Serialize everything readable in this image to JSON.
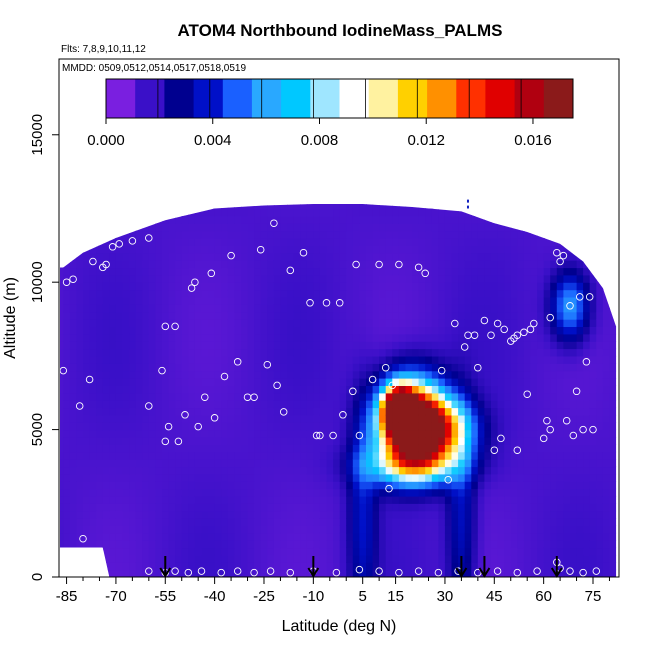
{
  "chart_data": {
    "type": "heatmap",
    "title": "ATOM4 Northbound IodineMass_PALMS",
    "flights_label": "Flts: 7,8,9,10,11,12",
    "dates_label": "MMDD: 0509,0512,0514,0517,0518,0519",
    "xlabel": "Latitude (deg N)",
    "ylabel": "Altitude (m)",
    "xlim": [
      -87,
      83
    ],
    "ylim": [
      0,
      17500
    ],
    "x_ticks": [
      -85,
      -70,
      -55,
      -40,
      -25,
      -10,
      5,
      15,
      30,
      45,
      60,
      75
    ],
    "y_ticks": [
      0,
      5000,
      10000,
      15000
    ],
    "colorbar": {
      "min": 0.0,
      "max": 0.0175,
      "tick_values": [
        0.0,
        0.004,
        0.008,
        0.012,
        0.016
      ],
      "tick_labels": [
        "0.000",
        "0.004",
        "0.008",
        "0.012",
        "0.016"
      ],
      "colors": [
        "#7a1fe0",
        "#3a10c8",
        "#00008f",
        "#0010c8",
        "#1a60ff",
        "#29a8ff",
        "#00c8ff",
        "#9fe6ff",
        "#ffffff",
        "#fff2a0",
        "#ffd000",
        "#ff9000",
        "#ff3000",
        "#e00000",
        "#b00010",
        "#8b1a1a"
      ]
    },
    "field_envelope": [
      [
        -86,
        10500
      ],
      [
        -80,
        11000
      ],
      [
        -70,
        11500
      ],
      [
        -55,
        12100
      ],
      [
        -40,
        12500
      ],
      [
        -25,
        12600
      ],
      [
        -10,
        12650
      ],
      [
        5,
        12650
      ],
      [
        20,
        12550
      ],
      [
        35,
        12400
      ],
      [
        45,
        12000
      ],
      [
        55,
        11700
      ],
      [
        65,
        11300
      ],
      [
        72,
        10700
      ],
      [
        78,
        9800
      ],
      [
        82,
        8500
      ],
      [
        82,
        0
      ],
      [
        -72,
        0
      ],
      [
        -74,
        1000
      ],
      [
        -87,
        1000
      ],
      [
        -87,
        10500
      ]
    ],
    "hotspots": [
      {
        "lat": 20,
        "alt": 5300,
        "value": 0.0165,
        "sx": 7,
        "sy": 1000
      },
      {
        "lat": 16,
        "alt": 5700,
        "value": 0.017,
        "sx": 3,
        "sy": 500
      },
      {
        "lat": 26,
        "alt": 5000,
        "value": 0.011,
        "sx": 8,
        "sy": 700
      },
      {
        "lat": 20,
        "alt": 3800,
        "value": 0.007,
        "sx": 10,
        "sy": 500
      },
      {
        "lat": 5,
        "alt": 2000,
        "value": 0.0025,
        "sx": 3,
        "sy": 2500
      },
      {
        "lat": 35,
        "alt": 2000,
        "value": 0.0025,
        "sx": 3,
        "sy": 2500
      },
      {
        "lat": 68,
        "alt": 9200,
        "value": 0.005,
        "sx": 4,
        "sy": 800
      }
    ],
    "samples": [
      [
        -86,
        7000
      ],
      [
        -85,
        10000
      ],
      [
        -83,
        10100
      ],
      [
        -81,
        5800
      ],
      [
        -80,
        1300
      ],
      [
        -78,
        6700
      ],
      [
        -77,
        10700
      ],
      [
        -74,
        10500
      ],
      [
        -73,
        10600
      ],
      [
        -71,
        11200
      ],
      [
        -69,
        11300
      ],
      [
        -65,
        11400
      ],
      [
        -60,
        11500
      ],
      [
        -60,
        5800
      ],
      [
        -56,
        7000
      ],
      [
        -55,
        8500
      ],
      [
        -55,
        4600
      ],
      [
        -54,
        5100
      ],
      [
        -52,
        8500
      ],
      [
        -51,
        4600
      ],
      [
        -49,
        5500
      ],
      [
        -47,
        9800
      ],
      [
        -46,
        10000
      ],
      [
        -45,
        5100
      ],
      [
        -43,
        6100
      ],
      [
        -41,
        10300
      ],
      [
        -40,
        5400
      ],
      [
        -37,
        6800
      ],
      [
        -35,
        10900
      ],
      [
        -33,
        7300
      ],
      [
        -30,
        6100
      ],
      [
        -28,
        6100
      ],
      [
        -26,
        11100
      ],
      [
        -24,
        7200
      ],
      [
        -22,
        12000
      ],
      [
        -21,
        6500
      ],
      [
        -19,
        5600
      ],
      [
        -17,
        10400
      ],
      [
        -13,
        11000
      ],
      [
        -11,
        9300
      ],
      [
        -9,
        4800
      ],
      [
        -8,
        4800
      ],
      [
        -6,
        9300
      ],
      [
        -4,
        4800
      ],
      [
        -2,
        9300
      ],
      [
        -1,
        5500
      ],
      [
        2,
        6300
      ],
      [
        3,
        10600
      ],
      [
        4,
        4800
      ],
      [
        8,
        6700
      ],
      [
        10,
        10600
      ],
      [
        12,
        7100
      ],
      [
        13,
        3000
      ],
      [
        14,
        6500
      ],
      [
        16,
        10600
      ],
      [
        22,
        10500
      ],
      [
        24,
        10300
      ],
      [
        29,
        7000
      ],
      [
        31,
        3300
      ],
      [
        33,
        8600
      ],
      [
        36,
        7800
      ],
      [
        37,
        8200
      ],
      [
        39,
        8200
      ],
      [
        40,
        7100
      ],
      [
        42,
        8700
      ],
      [
        44,
        8200
      ],
      [
        45,
        4300
      ],
      [
        46,
        8600
      ],
      [
        47,
        4700
      ],
      [
        48,
        8400
      ],
      [
        50,
        8000
      ],
      [
        51,
        8100
      ],
      [
        52,
        8200
      ],
      [
        52,
        4300
      ],
      [
        54,
        8300
      ],
      [
        55,
        6200
      ],
      [
        56,
        8400
      ],
      [
        57,
        8600
      ],
      [
        60,
        4700
      ],
      [
        61,
        5300
      ],
      [
        62,
        5000
      ],
      [
        62,
        8800
      ],
      [
        64,
        11000
      ],
      [
        65,
        10700
      ],
      [
        66,
        10900
      ],
      [
        67,
        5300
      ],
      [
        68,
        9200
      ],
      [
        69,
        4800
      ],
      [
        70,
        6300
      ],
      [
        71,
        9500
      ],
      [
        72,
        5000
      ],
      [
        73,
        7300
      ],
      [
        74,
        9500
      ],
      [
        75,
        5000
      ],
      [
        -60,
        200
      ],
      [
        -55,
        150
      ],
      [
        -52,
        200
      ],
      [
        -48,
        150
      ],
      [
        -44,
        200
      ],
      [
        -38,
        150
      ],
      [
        -33,
        200
      ],
      [
        -28,
        150
      ],
      [
        -23,
        200
      ],
      [
        -17,
        150
      ],
      [
        -10,
        200
      ],
      [
        -3,
        150
      ],
      [
        4,
        250
      ],
      [
        10,
        200
      ],
      [
        16,
        150
      ],
      [
        22,
        200
      ],
      [
        28,
        150
      ],
      [
        34,
        200
      ],
      [
        40,
        150
      ],
      [
        46,
        200
      ],
      [
        52,
        150
      ],
      [
        58,
        200
      ],
      [
        64,
        500
      ],
      [
        65,
        300
      ],
      [
        68,
        200
      ],
      [
        72,
        150
      ],
      [
        76,
        200
      ]
    ],
    "dashes": [
      [
        37,
        12800
      ],
      [
        37,
        12500
      ]
    ],
    "arrows": [
      -55,
      -10,
      35,
      42,
      64
    ]
  }
}
